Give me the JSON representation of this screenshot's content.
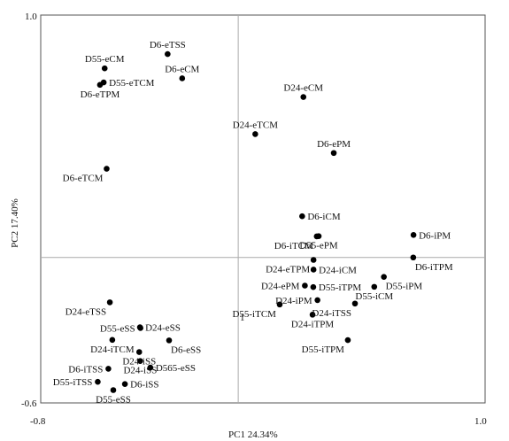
{
  "chart_data": {
    "type": "scatter",
    "xlabel": "PC1 24.34%",
    "ylabel": "PC2 17.40%",
    "xlim": [
      -0.8,
      1.0
    ],
    "ylim": [
      -0.6,
      1.0
    ],
    "x_ticks": [
      "-0.8",
      "1.0"
    ],
    "y_ticks": [
      "1.0",
      "-0.6"
    ],
    "reference_lines": {
      "x": 0,
      "y": 0
    },
    "grid": false,
    "points": [
      {
        "label": "D6-eTSS",
        "x": -0.286,
        "y": 0.839,
        "label_pos": "above"
      },
      {
        "label": "D55-eCM",
        "x": -0.541,
        "y": 0.78,
        "label_pos": "above"
      },
      {
        "label": "D6-eCM",
        "x": -0.227,
        "y": 0.739,
        "label_pos": "above"
      },
      {
        "label": "D55-eTCM",
        "x": -0.545,
        "y": 0.722,
        "label_pos": "right"
      },
      {
        "label": "D6-eTPM",
        "x": -0.56,
        "y": 0.712,
        "label_pos": "below"
      },
      {
        "label": "D24-eCM",
        "x": 0.264,
        "y": 0.662,
        "label_pos": "above"
      },
      {
        "label": "D24-eTCM",
        "x": 0.069,
        "y": 0.509,
        "label_pos": "above"
      },
      {
        "label": "D6-ePM",
        "x": 0.387,
        "y": 0.431,
        "label_pos": "above"
      },
      {
        "label": "D6-eTCM",
        "x": -0.533,
        "y": 0.366,
        "label_pos": "below-left"
      },
      {
        "label": "D6-iCM",
        "x": 0.259,
        "y": 0.17,
        "label_pos": "right"
      },
      {
        "label": "D6-iTCM",
        "x": 0.318,
        "y": 0.087,
        "label_pos": "below-left"
      },
      {
        "label": "D55-ePM",
        "x": 0.326,
        "y": 0.088,
        "label_pos": "below"
      },
      {
        "label": "D6-iPM",
        "x": 0.71,
        "y": 0.093,
        "label_pos": "right"
      },
      {
        "label": "D6-iTPM",
        "x": 0.709,
        "y": 0.0,
        "label_pos": "below-right"
      },
      {
        "label": "D24-eTPM",
        "x": 0.305,
        "y": -0.01,
        "label_pos": "below-left"
      },
      {
        "label": "D24-iCM",
        "x": 0.305,
        "y": -0.05,
        "label_pos": "right"
      },
      {
        "label": "D55-iPM",
        "x": 0.59,
        "y": -0.08,
        "label_pos": "below-right"
      },
      {
        "label": "D24-ePM",
        "x": 0.27,
        "y": -0.116,
        "label_pos": "left"
      },
      {
        "label": "D55-iTPM",
        "x": 0.304,
        "y": -0.122,
        "label_pos": "right"
      },
      {
        "label": "D55-iCM",
        "x": 0.551,
        "y": -0.121,
        "label_pos": "below"
      },
      {
        "label": "D24-iPM",
        "x": 0.321,
        "y": -0.176,
        "label_pos": "left"
      },
      {
        "label": "D24-iTSS",
        "x": 0.473,
        "y": -0.19,
        "label_pos": "below-left"
      },
      {
        "label": "D55-iTCM",
        "x": 0.168,
        "y": -0.194,
        "label_pos": "below-left"
      },
      {
        "label": "D24-iTPM",
        "x": 0.301,
        "y": -0.236,
        "label_pos": "below"
      },
      {
        "label": "D55-iTPM",
        "x": 0.444,
        "y": -0.341,
        "label_pos": "below-left"
      },
      {
        "label": "D24-eTSS",
        "x": -0.52,
        "y": -0.185,
        "label_pos": "below-left"
      },
      {
        "label": "D55-eSS",
        "x": -0.396,
        "y": -0.291,
        "label_pos": "left"
      },
      {
        "label": "D24-eSS",
        "x": -0.398,
        "y": -0.288,
        "label_pos": "right"
      },
      {
        "label": "D24-iTCM",
        "x": -0.51,
        "y": -0.34,
        "label_pos": "below"
      },
      {
        "label": "D6-eSS",
        "x": -0.28,
        "y": -0.342,
        "label_pos": "below-right"
      },
      {
        "label": "D24-iSS",
        "x": -0.401,
        "y": -0.39,
        "label_pos": "below"
      },
      {
        "label": "D6-iTSS",
        "x": -0.526,
        "y": -0.459,
        "label_pos": "left"
      },
      {
        "label": "D24-iSS",
        "x": -0.397,
        "y": -0.427,
        "label_pos": "below"
      },
      {
        "label": "D565-eSS",
        "x": -0.356,
        "y": -0.454,
        "label_pos": "right"
      },
      {
        "label": "D55-iTSS",
        "x": -0.569,
        "y": -0.513,
        "label_pos": "left"
      },
      {
        "label": "D6-iSS",
        "x": -0.459,
        "y": -0.522,
        "label_pos": "right"
      },
      {
        "label": "D55-eSS",
        "x": -0.506,
        "y": -0.547,
        "label_pos": "below"
      }
    ],
    "extra_labels": [
      {
        "text": "1",
        "near": "D55-iTCM"
      }
    ]
  }
}
